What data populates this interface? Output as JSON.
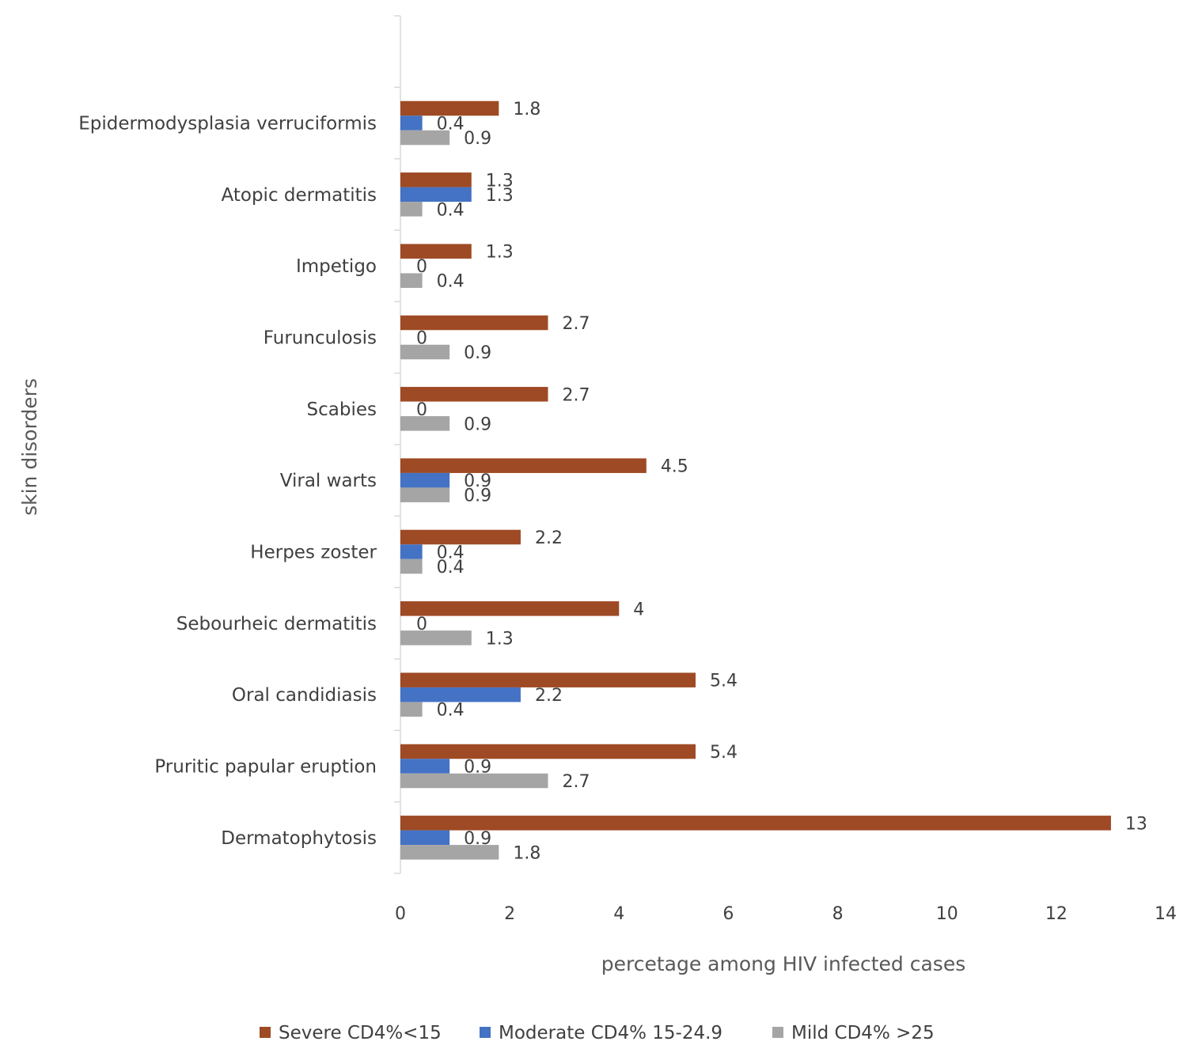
{
  "chart_data": {
    "type": "bar",
    "orientation": "horizontal",
    "title": "",
    "xlabel": "percetage among HIV infected cases",
    "ylabel": "skin disorders",
    "xlim": [
      0,
      14
    ],
    "xticks": [
      0,
      2,
      4,
      6,
      8,
      10,
      12,
      14
    ],
    "grid": false,
    "legend_position": "bottom",
    "categories": [
      "Dermatophytosis",
      "Pruritic papular eruption",
      "Oral candidiasis",
      "Sebourheic dermatitis",
      "Herpes zoster",
      "Viral warts",
      "Scabies",
      "Furunculosis",
      "Impetigo",
      "Atopic dermatitis",
      "Epidermodysplasia verruciformis"
    ],
    "series": [
      {
        "name": "Severe CD4%<15",
        "color": "#9E4A24",
        "values": [
          13,
          5.4,
          5.4,
          4,
          2.2,
          4.5,
          2.7,
          2.7,
          1.3,
          1.3,
          1.8
        ]
      },
      {
        "name": "Moderate CD4% 15-24.9",
        "color": "#4472C4",
        "values": [
          0.9,
          0.9,
          2.2,
          0,
          0.4,
          0.9,
          0,
          0,
          0,
          1.3,
          0.4
        ]
      },
      {
        "name": "Mild CD4% >25",
        "color": "#A5A5A5",
        "values": [
          1.8,
          2.7,
          0.4,
          1.3,
          0.4,
          0.9,
          0.9,
          0.9,
          0.4,
          0.4,
          0.9
        ]
      }
    ]
  }
}
